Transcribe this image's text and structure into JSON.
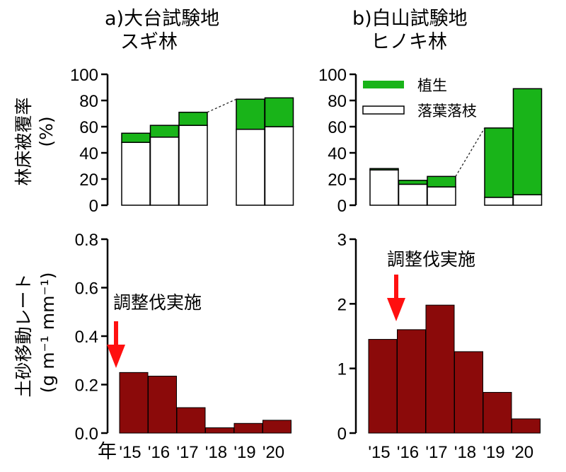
{
  "panel_a": {
    "title": "a)大台試験地",
    "subtitle": "スギ林"
  },
  "panel_b": {
    "title": "b)白山試験地",
    "subtitle": "ヒノキ林"
  },
  "colors": {
    "vegetation": "#19b419",
    "litter": "#ffffff",
    "soil": "#8b0a0a",
    "arrow": "#ff1010",
    "dotted": "#222222"
  },
  "legend": {
    "vegetation": "植生",
    "litter": "落葉落枝"
  },
  "cover_ylabel": {
    "main": "林床被覆率",
    "unit": "(%)"
  },
  "soil_ylabel": {
    "main": "土砂移動レート",
    "unit": "(g m⁻¹ mm⁻¹)"
  },
  "thinning_label": "調整伐実施",
  "x_axis": {
    "prefix": "年",
    "years": [
      "'15",
      "'16",
      "'17",
      "'18",
      "'19",
      "'20"
    ]
  },
  "chart_data": [
    {
      "type": "bar",
      "panel": "a-top",
      "stacked": true,
      "categories": [
        "'15",
        "'16",
        "'17",
        "'18",
        "'19",
        "'20"
      ],
      "ylim": [
        0,
        100
      ],
      "yticks": [
        "0",
        "20",
        "40",
        "60",
        "80",
        "100"
      ],
      "series": [
        {
          "name": "落葉落枝",
          "values": [
            48,
            52,
            61,
            null,
            58,
            60
          ]
        },
        {
          "name": "植生",
          "values": [
            7,
            9,
            10,
            null,
            23,
            22
          ]
        }
      ]
    },
    {
      "type": "bar",
      "panel": "b-top",
      "stacked": true,
      "categories": [
        "'15",
        "'16",
        "'17",
        "'18",
        "'19",
        "'20"
      ],
      "ylim": [
        0,
        100
      ],
      "yticks": [
        "0",
        "20",
        "40",
        "60",
        "80",
        "100"
      ],
      "legend_position": "top-left",
      "series": [
        {
          "name": "落葉落枝",
          "values": [
            27,
            16,
            14,
            null,
            6,
            8
          ]
        },
        {
          "name": "植生",
          "values": [
            1,
            3,
            8,
            null,
            53,
            81
          ]
        }
      ]
    },
    {
      "type": "bar",
      "panel": "a-bottom",
      "categories": [
        "'15",
        "'16",
        "'17",
        "'18",
        "'19",
        "'20"
      ],
      "ylim": [
        0,
        0.8
      ],
      "yticks": [
        "0.0",
        "0.2",
        "0.4",
        "0.6",
        "0.8"
      ],
      "values": [
        0.25,
        0.235,
        0.105,
        0.022,
        0.04,
        0.053
      ]
    },
    {
      "type": "bar",
      "panel": "b-bottom",
      "categories": [
        "'15",
        "'16",
        "'17",
        "'18",
        "'19",
        "'20"
      ],
      "ylim": [
        0,
        3
      ],
      "yticks": [
        "0",
        "1",
        "2",
        "3"
      ],
      "values": [
        1.45,
        1.6,
        1.98,
        1.26,
        0.63,
        0.22
      ]
    }
  ]
}
